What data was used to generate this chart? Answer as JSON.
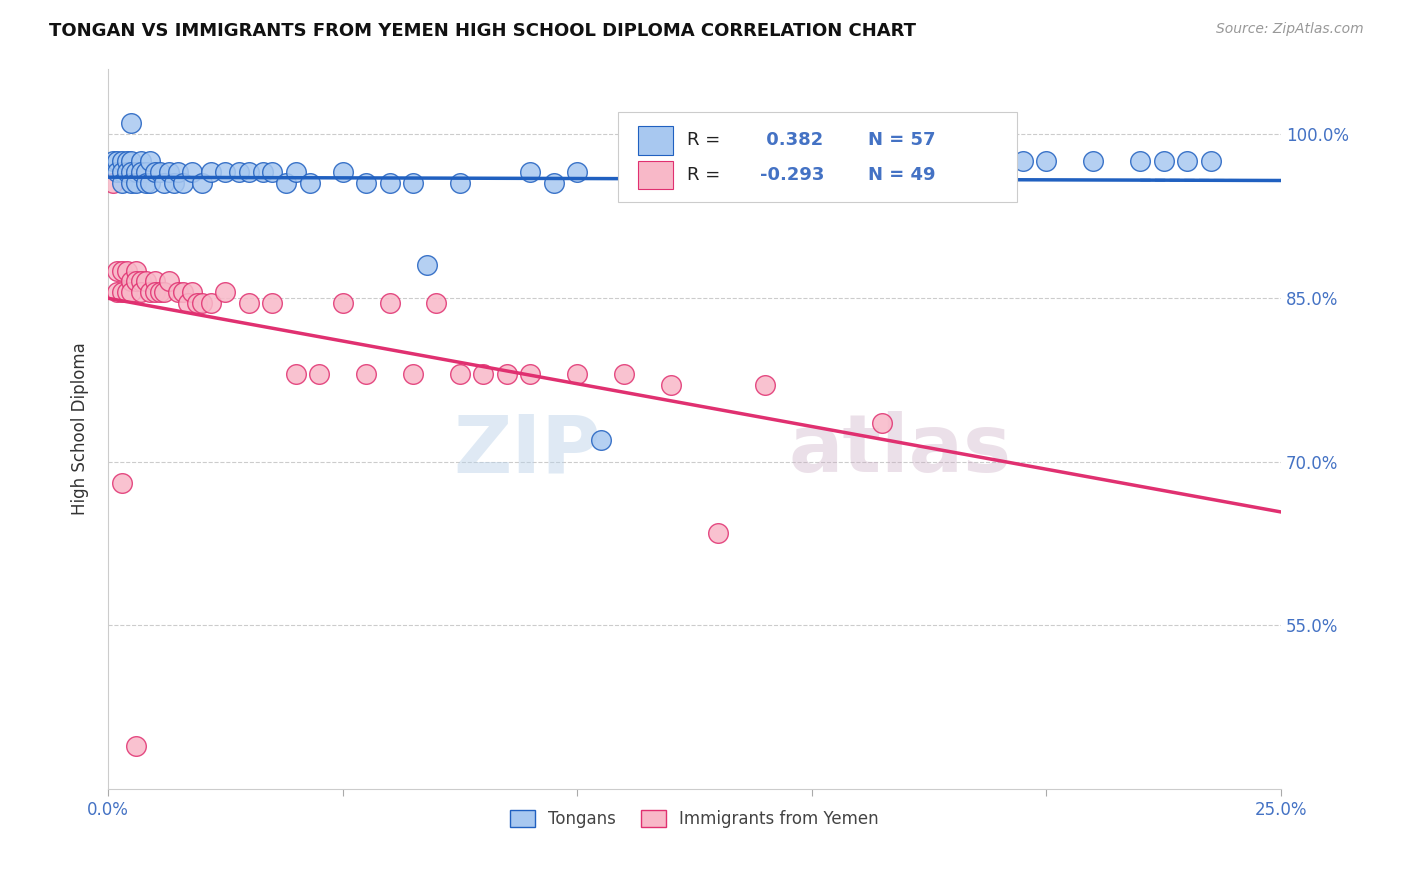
{
  "title": "TONGAN VS IMMIGRANTS FROM YEMEN HIGH SCHOOL DIPLOMA CORRELATION CHART",
  "source": "Source: ZipAtlas.com",
  "ylabel": "High School Diploma",
  "ytick_labels": [
    "100.0%",
    "85.0%",
    "70.0%",
    "55.0%"
  ],
  "ytick_values": [
    1.0,
    0.85,
    0.7,
    0.55
  ],
  "xmin": 0.0,
  "xmax": 0.25,
  "ymin": 0.4,
  "ymax": 1.06,
  "watermark": "ZIPatlas",
  "blue_color": "#A8C8F0",
  "pink_color": "#F8B8C8",
  "blue_line_color": "#2060C0",
  "pink_line_color": "#E03070",
  "blue_scatter": [
    [
      0.001,
      0.975
    ],
    [
      0.002,
      0.975
    ],
    [
      0.002,
      0.965
    ],
    [
      0.003,
      0.975
    ],
    [
      0.003,
      0.965
    ],
    [
      0.003,
      0.955
    ],
    [
      0.004,
      0.975
    ],
    [
      0.004,
      0.965
    ],
    [
      0.005,
      0.975
    ],
    [
      0.005,
      0.965
    ],
    [
      0.005,
      0.955
    ],
    [
      0.006,
      0.965
    ],
    [
      0.006,
      0.955
    ],
    [
      0.007,
      0.975
    ],
    [
      0.007,
      0.965
    ],
    [
      0.008,
      0.965
    ],
    [
      0.008,
      0.955
    ],
    [
      0.009,
      0.975
    ],
    [
      0.009,
      0.955
    ],
    [
      0.01,
      0.965
    ],
    [
      0.011,
      0.965
    ],
    [
      0.012,
      0.955
    ],
    [
      0.013,
      0.965
    ],
    [
      0.014,
      0.955
    ],
    [
      0.015,
      0.965
    ],
    [
      0.016,
      0.955
    ],
    [
      0.018,
      0.965
    ],
    [
      0.02,
      0.955
    ],
    [
      0.022,
      0.965
    ],
    [
      0.025,
      0.965
    ],
    [
      0.028,
      0.965
    ],
    [
      0.03,
      0.965
    ],
    [
      0.033,
      0.965
    ],
    [
      0.035,
      0.965
    ],
    [
      0.038,
      0.955
    ],
    [
      0.04,
      0.965
    ],
    [
      0.043,
      0.955
    ],
    [
      0.05,
      0.965
    ],
    [
      0.055,
      0.955
    ],
    [
      0.06,
      0.955
    ],
    [
      0.065,
      0.955
    ],
    [
      0.068,
      0.88
    ],
    [
      0.075,
      0.955
    ],
    [
      0.09,
      0.965
    ],
    [
      0.095,
      0.955
    ],
    [
      0.1,
      0.965
    ],
    [
      0.105,
      0.72
    ],
    [
      0.115,
      0.965
    ],
    [
      0.005,
      1.01
    ],
    [
      0.17,
      0.975
    ],
    [
      0.195,
      0.975
    ],
    [
      0.2,
      0.975
    ],
    [
      0.21,
      0.975
    ],
    [
      0.22,
      0.975
    ],
    [
      0.225,
      0.975
    ],
    [
      0.23,
      0.975
    ],
    [
      0.235,
      0.975
    ]
  ],
  "pink_scatter": [
    [
      0.001,
      0.955
    ],
    [
      0.002,
      0.875
    ],
    [
      0.002,
      0.855
    ],
    [
      0.003,
      0.875
    ],
    [
      0.003,
      0.855
    ],
    [
      0.004,
      0.875
    ],
    [
      0.004,
      0.855
    ],
    [
      0.005,
      0.865
    ],
    [
      0.005,
      0.855
    ],
    [
      0.006,
      0.875
    ],
    [
      0.006,
      0.865
    ],
    [
      0.007,
      0.865
    ],
    [
      0.007,
      0.855
    ],
    [
      0.008,
      0.865
    ],
    [
      0.009,
      0.855
    ],
    [
      0.01,
      0.865
    ],
    [
      0.01,
      0.855
    ],
    [
      0.011,
      0.855
    ],
    [
      0.012,
      0.855
    ],
    [
      0.013,
      0.865
    ],
    [
      0.015,
      0.855
    ],
    [
      0.016,
      0.855
    ],
    [
      0.017,
      0.845
    ],
    [
      0.018,
      0.855
    ],
    [
      0.019,
      0.845
    ],
    [
      0.02,
      0.845
    ],
    [
      0.022,
      0.845
    ],
    [
      0.003,
      0.68
    ],
    [
      0.025,
      0.855
    ],
    [
      0.03,
      0.845
    ],
    [
      0.035,
      0.845
    ],
    [
      0.04,
      0.78
    ],
    [
      0.045,
      0.78
    ],
    [
      0.05,
      0.845
    ],
    [
      0.055,
      0.78
    ],
    [
      0.06,
      0.845
    ],
    [
      0.065,
      0.78
    ],
    [
      0.07,
      0.845
    ],
    [
      0.075,
      0.78
    ],
    [
      0.08,
      0.78
    ],
    [
      0.085,
      0.78
    ],
    [
      0.09,
      0.78
    ],
    [
      0.1,
      0.78
    ],
    [
      0.11,
      0.78
    ],
    [
      0.12,
      0.77
    ],
    [
      0.13,
      0.635
    ],
    [
      0.14,
      0.77
    ],
    [
      0.165,
      0.735
    ],
    [
      0.006,
      0.44
    ]
  ]
}
